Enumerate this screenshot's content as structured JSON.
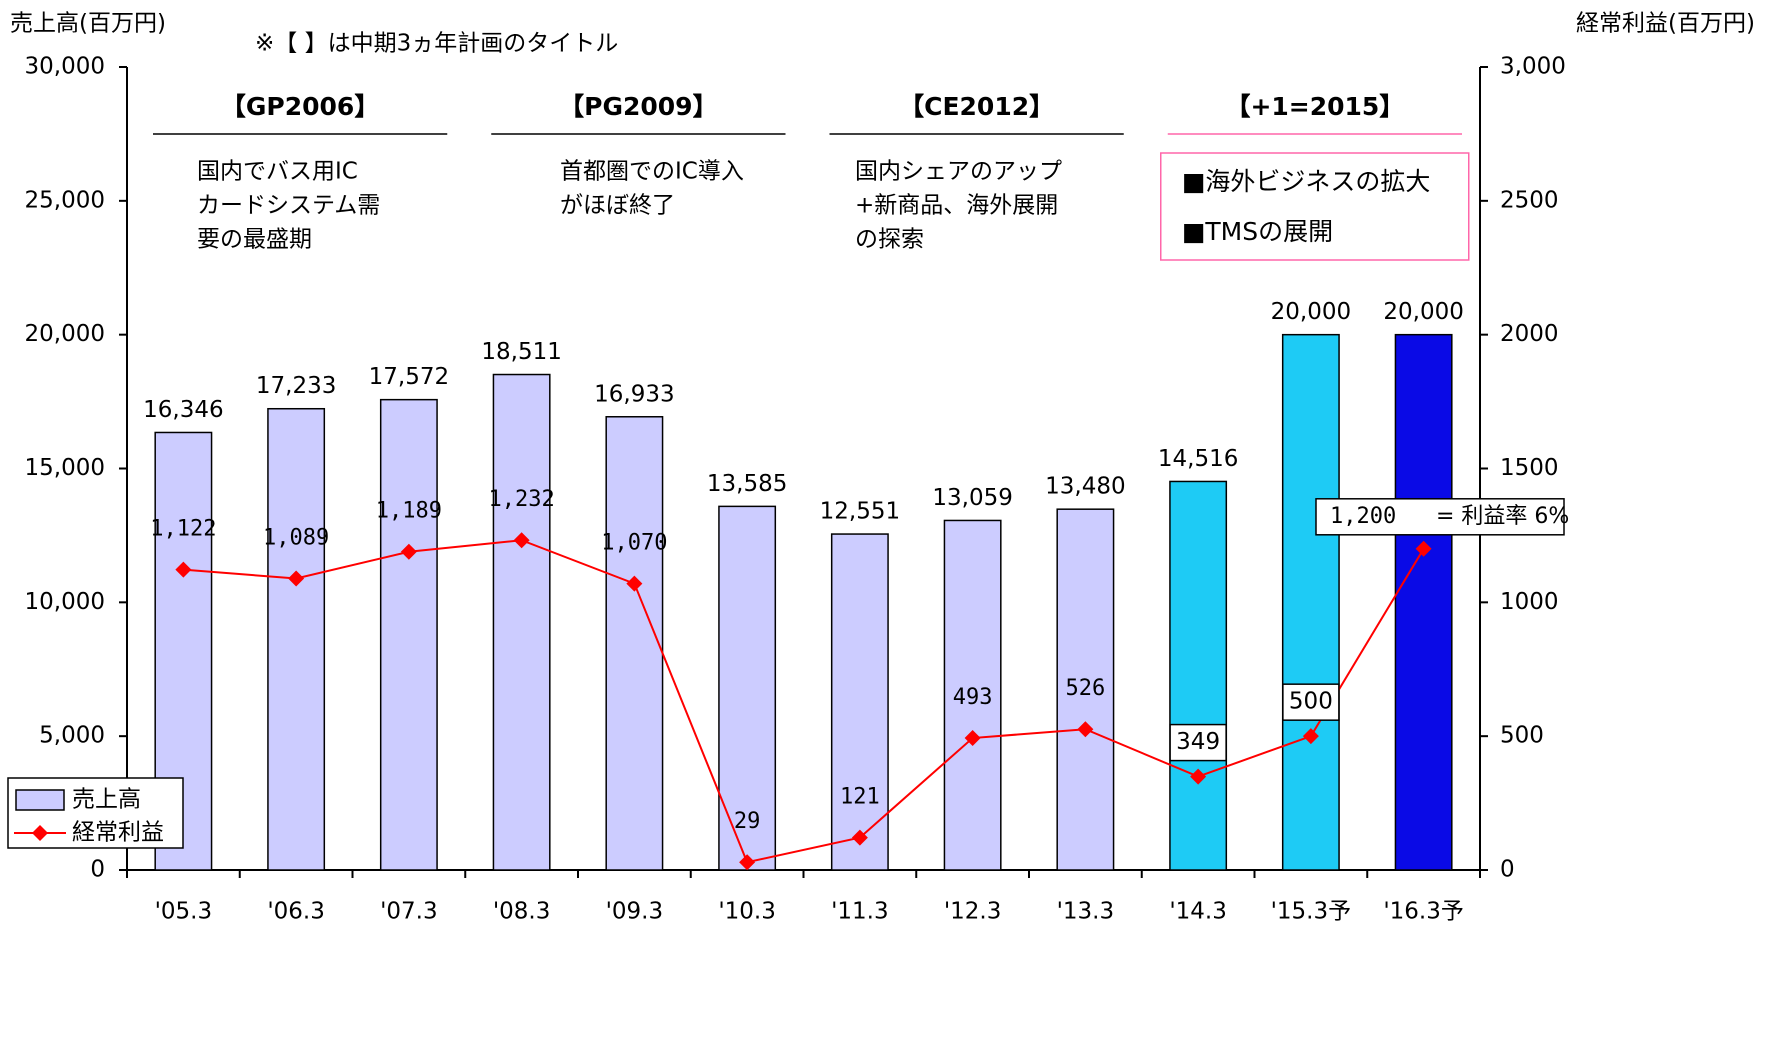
{
  "chart_data": {
    "type": "bar",
    "y_axis_label": "売上高(百万円)",
    "y2_axis_label": "経常利益(百万円)",
    "subtitle": "※【 】は中期3ヵ年計画のタイトル",
    "categories": [
      "'05.3",
      "'06.3",
      "'07.3",
      "'08.3",
      "'09.3",
      "'10.3",
      "'11.3",
      "'12.3",
      "'13.3",
      "'14.3",
      "'15.3予",
      "'16.3予"
    ],
    "series": [
      {
        "name": "売上高",
        "type": "bar",
        "color": "#ccccff",
        "colors": [
          "#ccccff",
          "#ccccff",
          "#ccccff",
          "#ccccff",
          "#ccccff",
          "#ccccff",
          "#ccccff",
          "#ccccff",
          "#ccccff",
          "#1ecbf5",
          "#1ecbf5",
          "#0a0ae6"
        ],
        "values": [
          16346,
          17233,
          17572,
          18511,
          16933,
          13585,
          12551,
          13059,
          13480,
          14516,
          20000,
          20000
        ],
        "value_labels": [
          "16,346",
          "17,233",
          "17,572",
          "18,511",
          "16,933",
          "13,585",
          "12,551",
          "13,059",
          "13,480",
          "14,516",
          "20,000",
          "20,000"
        ]
      },
      {
        "name": "経常利益",
        "type": "line",
        "axis": "y2",
        "color": "#ff0000",
        "values": [
          1122,
          1089,
          1189,
          1232,
          1070,
          29,
          121,
          493,
          526,
          349,
          500,
          1200
        ],
        "value_labels": [
          "1,122",
          "1,089",
          "1,189",
          "1,232",
          "1,070",
          "29",
          "121",
          "493",
          "526",
          "349",
          "500",
          "1,200"
        ]
      }
    ],
    "ylim": [
      0,
      30000
    ],
    "yticks": [
      0,
      {
        "value": 5000,
        "label": "5,000"
      },
      {
        "value": 10000,
        "label": "10,000"
      },
      {
        "value": 15000,
        "label": "15,000"
      },
      {
        "value": 20000,
        "label": "20,000"
      },
      {
        "value": 25000,
        "label": "25,000"
      },
      {
        "value": 30000,
        "label": "30,000"
      }
    ],
    "y2lim": [
      0,
      3000
    ],
    "y2ticks": [
      0,
      500,
      1000,
      1500,
      2000,
      2500,
      {
        "value": 3000,
        "label": "3,000"
      }
    ],
    "annotations": [
      "= 利益率 6%"
    ],
    "plans": [
      {
        "title": "【GP2006】",
        "lines": [
          "国内でバス用IC",
          "カードシステム需",
          "要の最盛期"
        ]
      },
      {
        "title": "【PG2009】",
        "lines": [
          "首都圏でのIC導入",
          "がほぼ終了"
        ]
      },
      {
        "title": "【CE2012】",
        "lines": [
          "国内シェアのアップ",
          "+新商品、海外展開",
          "の探索"
        ]
      },
      {
        "title": "【+1=2015】",
        "lines": [
          "■海外ビジネスの拡大",
          "■TMSの展開"
        ]
      }
    ],
    "legend": "bottom-left"
  }
}
